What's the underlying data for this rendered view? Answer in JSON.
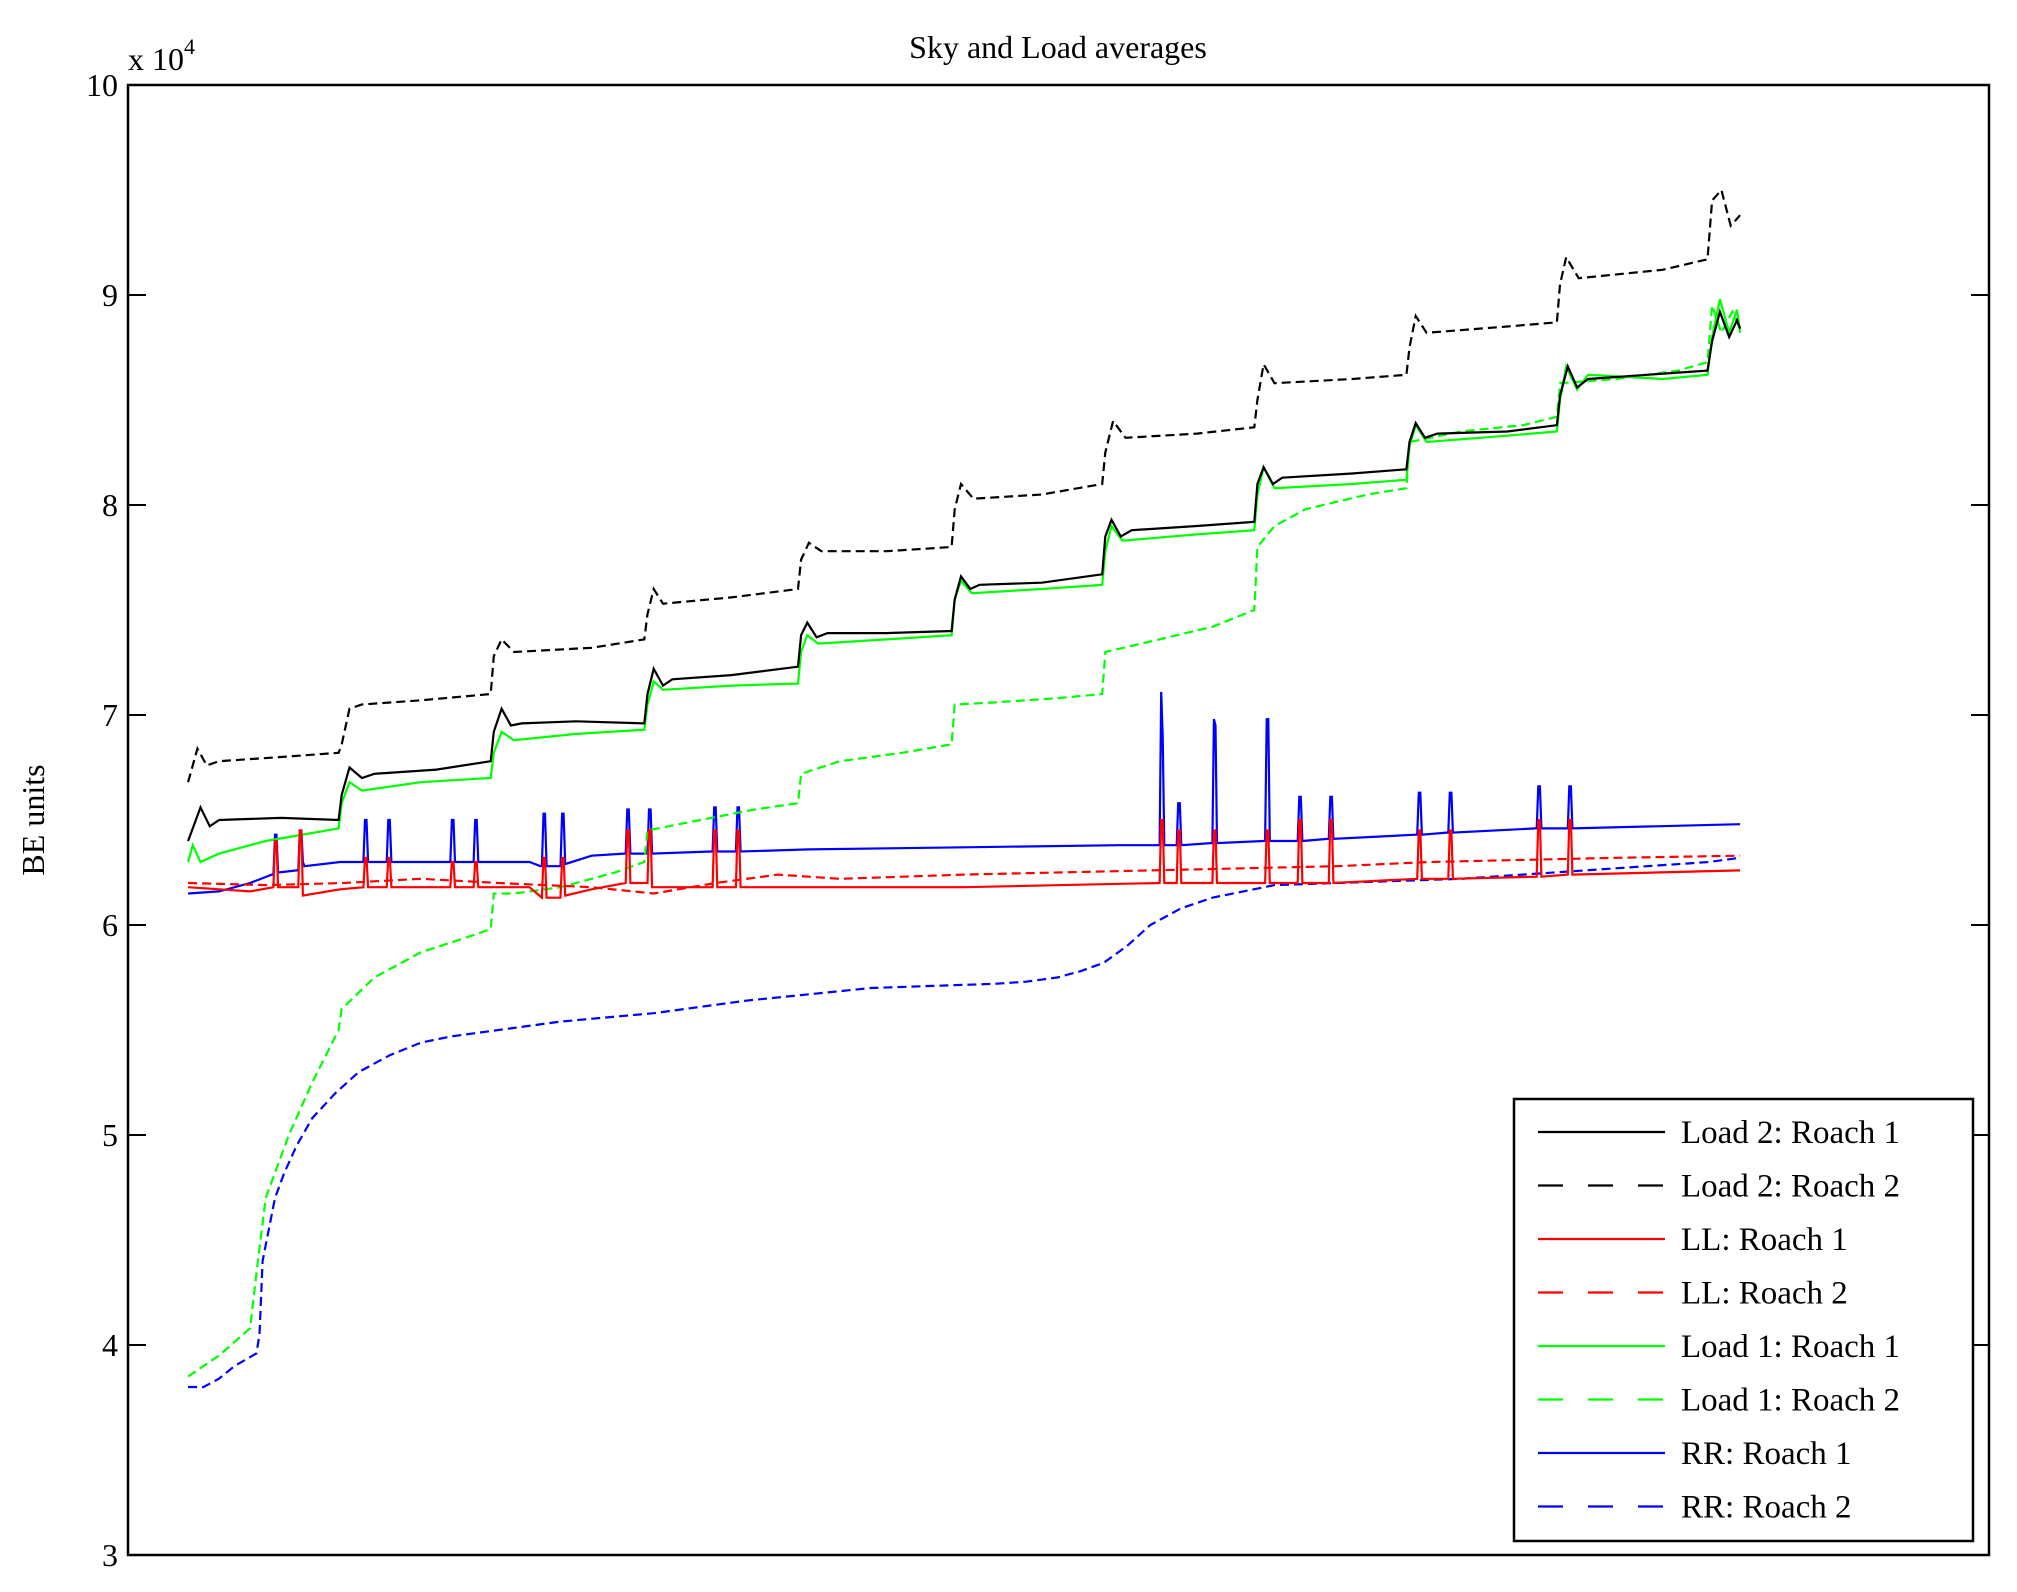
{
  "chart_data": {
    "type": "line",
    "title": "Sky and Load averages",
    "xlabel": "",
    "ylabel": "BE units",
    "y_multiplier_label": {
      "base": "x 10",
      "exponent": "4"
    },
    "ylim": [
      3,
      10
    ],
    "xlim": [
      -38.7,
      1160.4
    ],
    "yticks": [
      3,
      4,
      5,
      6,
      7,
      8,
      9,
      10
    ],
    "ytick_labels": [
      "3",
      "4",
      "5",
      "6",
      "7",
      "8",
      "9",
      "10"
    ],
    "xticks": [],
    "grid": false,
    "legend_position": "bottom-right",
    "series": [
      {
        "name": "Load 2: Roach 1",
        "color": "#000000",
        "style": "solid",
        "x": [
          0,
          8,
          14,
          20,
          60,
          97,
          99,
          104,
          112,
          120,
          160,
          195,
          197,
          202,
          208,
          215,
          250,
          294,
          296,
          300,
          306,
          312,
          350,
          393,
          395,
          399,
          405,
          412,
          450,
          492,
          494,
          498,
          504,
          510,
          550,
          589,
          591,
          595,
          601,
          608,
          650,
          687,
          689,
          693,
          699,
          705,
          750,
          785,
          787,
          791,
          797,
          805,
          850,
          882,
          884,
          889,
          895,
          902,
          940,
          979,
          982,
          987,
          993,
          998,
          1000
        ],
        "y": [
          6.4,
          6.56,
          6.47,
          6.5,
          6.51,
          6.5,
          6.62,
          6.75,
          6.7,
          6.72,
          6.74,
          6.78,
          6.92,
          7.03,
          6.95,
          6.96,
          6.97,
          6.96,
          7.1,
          7.22,
          7.14,
          7.17,
          7.19,
          7.23,
          7.38,
          7.44,
          7.37,
          7.39,
          7.39,
          7.4,
          7.55,
          7.66,
          7.6,
          7.62,
          7.63,
          7.67,
          7.85,
          7.93,
          7.85,
          7.88,
          7.9,
          7.92,
          8.1,
          8.18,
          8.1,
          8.13,
          8.15,
          8.17,
          8.3,
          8.39,
          8.32,
          8.34,
          8.35,
          8.38,
          8.52,
          8.66,
          8.56,
          8.6,
          8.62,
          8.64,
          8.78,
          8.92,
          8.8,
          8.88,
          8.84
        ]
      },
      {
        "name": "Load 2: Roach 2",
        "color": "#000000",
        "style": "dashed",
        "x": [
          0,
          6,
          12,
          20,
          60,
          97,
          99,
          104,
          112,
          150,
          195,
          197,
          202,
          210,
          260,
          294,
          296,
          300,
          306,
          350,
          393,
          395,
          400,
          408,
          450,
          492,
          494,
          498,
          506,
          550,
          589,
          591,
          596,
          604,
          650,
          687,
          689,
          693,
          700,
          750,
          785,
          787,
          791,
          798,
          850,
          882,
          884,
          888,
          896,
          950,
          979,
          982,
          988,
          994,
          1000
        ],
        "y": [
          6.68,
          6.84,
          6.76,
          6.78,
          6.8,
          6.82,
          6.86,
          7.03,
          7.05,
          7.07,
          7.1,
          7.28,
          7.36,
          7.3,
          7.32,
          7.36,
          7.48,
          7.6,
          7.53,
          7.56,
          7.6,
          7.74,
          7.82,
          7.78,
          7.78,
          7.8,
          7.98,
          8.1,
          8.03,
          8.05,
          8.1,
          8.25,
          8.4,
          8.32,
          8.34,
          8.37,
          8.5,
          8.67,
          8.58,
          8.6,
          8.62,
          8.75,
          8.9,
          8.82,
          8.85,
          8.87,
          9.05,
          9.18,
          9.08,
          9.12,
          9.17,
          9.45,
          9.5,
          9.33,
          9.38
        ]
      },
      {
        "name": "LL: Roach 1",
        "color": "#ff0000",
        "style": "solid",
        "x": [
          0,
          40,
          55,
          56,
          57,
          58,
          71,
          72,
          73,
          74,
          98,
          113,
          114,
          115,
          116,
          128,
          129,
          130,
          131,
          169,
          170,
          171,
          172,
          184,
          185,
          186,
          187,
          220,
          228,
          229,
          230,
          231,
          240,
          241,
          242,
          243,
          260,
          282,
          283,
          284,
          285,
          296,
          297,
          298,
          299,
          338,
          339,
          340,
          341,
          353,
          354,
          355,
          356,
          400,
          500,
          626,
          627,
          628,
          629,
          637,
          638,
          639,
          640,
          660,
          661,
          662,
          663,
          694,
          695,
          696,
          697,
          715,
          716,
          717,
          718,
          735,
          736,
          737,
          738,
          792,
          793,
          794,
          795,
          812,
          813,
          814,
          815,
          869,
          870,
          871,
          872,
          889,
          890,
          891,
          892,
          1000
        ],
        "y": [
          6.18,
          6.16,
          6.18,
          6.4,
          6.4,
          6.18,
          6.18,
          6.45,
          6.45,
          6.14,
          6.17,
          6.18,
          6.32,
          6.32,
          6.18,
          6.18,
          6.32,
          6.32,
          6.18,
          6.18,
          6.3,
          6.3,
          6.18,
          6.18,
          6.3,
          6.3,
          6.18,
          6.18,
          6.13,
          6.32,
          6.32,
          6.13,
          6.13,
          6.32,
          6.32,
          6.14,
          6.17,
          6.2,
          6.45,
          6.45,
          6.2,
          6.2,
          6.45,
          6.45,
          6.18,
          6.18,
          6.45,
          6.45,
          6.18,
          6.18,
          6.45,
          6.45,
          6.18,
          6.18,
          6.18,
          6.2,
          6.5,
          6.5,
          6.2,
          6.2,
          6.45,
          6.45,
          6.2,
          6.2,
          6.45,
          6.45,
          6.2,
          6.2,
          6.45,
          6.45,
          6.2,
          6.2,
          6.5,
          6.5,
          6.2,
          6.2,
          6.5,
          6.5,
          6.2,
          6.22,
          6.45,
          6.45,
          6.22,
          6.22,
          6.45,
          6.45,
          6.22,
          6.23,
          6.5,
          6.5,
          6.23,
          6.24,
          6.5,
          6.5,
          6.24,
          6.26
        ]
      },
      {
        "name": "LL: Roach 2",
        "color": "#ff0000",
        "style": "dashed",
        "x": [
          0,
          50,
          100,
          150,
          200,
          260,
          300,
          340,
          380,
          420,
          460,
          500,
          560,
          620,
          680,
          740,
          800,
          860,
          920,
          1000
        ],
        "y": [
          6.2,
          6.19,
          6.2,
          6.22,
          6.2,
          6.18,
          6.15,
          6.2,
          6.24,
          6.22,
          6.23,
          6.24,
          6.25,
          6.26,
          6.27,
          6.28,
          6.3,
          6.31,
          6.32,
          6.33
        ]
      },
      {
        "name": "Load 1: Roach 1",
        "color": "#00ff00",
        "style": "solid",
        "x": [
          0,
          3,
          8,
          20,
          50,
          97,
          99,
          104,
          112,
          150,
          195,
          197,
          202,
          210,
          250,
          294,
          296,
          300,
          306,
          350,
          393,
          395,
          399,
          406,
          450,
          492,
          494,
          498,
          505,
          550,
          589,
          591,
          595,
          602,
          650,
          687,
          689,
          693,
          700,
          750,
          785,
          787,
          791,
          798,
          850,
          882,
          884,
          888,
          895,
          902,
          950,
          979,
          982,
          987,
          993,
          998,
          1000
        ],
        "y": [
          6.3,
          6.38,
          6.3,
          6.34,
          6.4,
          6.46,
          6.58,
          6.68,
          6.64,
          6.68,
          6.7,
          6.82,
          6.92,
          6.88,
          6.91,
          6.93,
          7.05,
          7.16,
          7.12,
          7.14,
          7.15,
          7.3,
          7.38,
          7.34,
          7.36,
          7.38,
          7.55,
          7.64,
          7.58,
          7.6,
          7.62,
          7.78,
          7.9,
          7.83,
          7.86,
          7.88,
          8.05,
          8.18,
          8.08,
          8.1,
          8.12,
          8.28,
          8.38,
          8.3,
          8.33,
          8.35,
          8.5,
          8.66,
          8.55,
          8.62,
          8.6,
          8.62,
          8.8,
          8.98,
          8.82,
          8.93,
          8.82
        ]
      },
      {
        "name": "Load 1: Roach 2",
        "color": "#00ff00",
        "style": "dashed",
        "x": [
          0,
          20,
          40,
          45,
          50,
          55,
          65,
          80,
          97,
          99,
          120,
          150,
          175,
          195,
          197,
          210,
          240,
          275,
          294,
          296,
          330,
          365,
          393,
          395,
          420,
          460,
          492,
          494,
          520,
          560,
          589,
          591,
          620,
          660,
          687,
          689,
          700,
          720,
          760,
          785,
          787,
          820,
          860,
          882,
          884,
          920,
          960,
          979,
          982,
          988,
          995,
          1000
        ],
        "y": [
          3.85,
          3.95,
          4.08,
          4.4,
          4.7,
          4.8,
          5.0,
          5.25,
          5.5,
          5.6,
          5.75,
          5.87,
          5.93,
          5.98,
          6.15,
          6.15,
          6.18,
          6.25,
          6.3,
          6.45,
          6.5,
          6.55,
          6.58,
          6.72,
          6.78,
          6.82,
          6.86,
          7.05,
          7.06,
          7.08,
          7.1,
          7.3,
          7.35,
          7.42,
          7.5,
          7.8,
          7.9,
          7.98,
          8.05,
          8.08,
          8.3,
          8.35,
          8.38,
          8.42,
          8.58,
          8.6,
          8.64,
          8.68,
          8.95,
          8.82,
          8.92,
          8.84
        ]
      },
      {
        "name": "RR: Roach 1",
        "color": "#0000ff",
        "style": "solid",
        "x": [
          0,
          20,
          40,
          54,
          55,
          56,
          57,
          58,
          70,
          71,
          72,
          73,
          74,
          75,
          98,
          112,
          113,
          114,
          115,
          116,
          127,
          128,
          129,
          130,
          131,
          168,
          169,
          170,
          171,
          172,
          183,
          184,
          185,
          186,
          187,
          220,
          227,
          228,
          229,
          230,
          231,
          239,
          240,
          241,
          242,
          243,
          260,
          281,
          282,
          283,
          284,
          285,
          295,
          296,
          297,
          298,
          299,
          337,
          338,
          339,
          340,
          341,
          352,
          353,
          354,
          355,
          356,
          400,
          500,
          600,
          625,
          626,
          627,
          628,
          629,
          636,
          637,
          638,
          639,
          640,
          659,
          660,
          661,
          662,
          663,
          693,
          694,
          695,
          696,
          697,
          714,
          715,
          716,
          717,
          718,
          734,
          735,
          736,
          737,
          738,
          791,
          792,
          793,
          794,
          795,
          811,
          812,
          813,
          814,
          815,
          868,
          869,
          870,
          871,
          872,
          888,
          889,
          890,
          891,
          892,
          1000
        ],
        "y": [
          6.15,
          6.16,
          6.2,
          6.24,
          6.24,
          6.43,
          6.43,
          6.25,
          6.26,
          6.26,
          6.45,
          6.45,
          6.3,
          6.28,
          6.3,
          6.3,
          6.3,
          6.5,
          6.5,
          6.3,
          6.3,
          6.3,
          6.5,
          6.5,
          6.3,
          6.3,
          6.3,
          6.5,
          6.5,
          6.3,
          6.3,
          6.3,
          6.5,
          6.5,
          6.3,
          6.3,
          6.28,
          6.28,
          6.53,
          6.53,
          6.28,
          6.28,
          6.28,
          6.53,
          6.53,
          6.29,
          6.33,
          6.34,
          6.34,
          6.55,
          6.55,
          6.34,
          6.34,
          6.34,
          6.55,
          6.55,
          6.34,
          6.35,
          6.35,
          6.56,
          6.56,
          6.35,
          6.35,
          6.35,
          6.56,
          6.56,
          6.35,
          6.36,
          6.37,
          6.38,
          6.38,
          6.38,
          7.11,
          6.9,
          6.38,
          6.38,
          6.38,
          6.58,
          6.58,
          6.38,
          6.39,
          6.39,
          6.98,
          6.95,
          6.39,
          6.4,
          6.4,
          6.98,
          6.98,
          6.4,
          6.4,
          6.4,
          6.61,
          6.61,
          6.4,
          6.41,
          6.41,
          6.61,
          6.61,
          6.41,
          6.43,
          6.43,
          6.63,
          6.63,
          6.43,
          6.44,
          6.44,
          6.63,
          6.63,
          6.44,
          6.46,
          6.46,
          6.66,
          6.66,
          6.46,
          6.46,
          6.46,
          6.66,
          6.66,
          6.46,
          6.48
        ]
      },
      {
        "name": "RR: Roach 2",
        "color": "#0000ff",
        "style": "dashed",
        "x": [
          0,
          10,
          20,
          30,
          44,
          46,
          48,
          52,
          56,
          62,
          70,
          80,
          95,
          110,
          130,
          150,
          170,
          190,
          210,
          240,
          270,
          300,
          330,
          360,
          400,
          440,
          480,
          520,
          540,
          560,
          575,
          590,
          605,
          620,
          640,
          660,
          680,
          700,
          740,
          780,
          820,
          860,
          900,
          940,
          980,
          1000
        ],
        "y": [
          3.8,
          3.8,
          3.84,
          3.9,
          3.96,
          4.05,
          4.4,
          4.55,
          4.7,
          4.82,
          4.95,
          5.08,
          5.2,
          5.3,
          5.38,
          5.44,
          5.47,
          5.49,
          5.51,
          5.54,
          5.56,
          5.58,
          5.61,
          5.64,
          5.67,
          5.7,
          5.71,
          5.72,
          5.73,
          5.75,
          5.78,
          5.82,
          5.9,
          6.0,
          6.08,
          6.13,
          6.16,
          6.19,
          6.2,
          6.21,
          6.22,
          6.24,
          6.26,
          6.28,
          6.3,
          6.32
        ]
      }
    ]
  }
}
